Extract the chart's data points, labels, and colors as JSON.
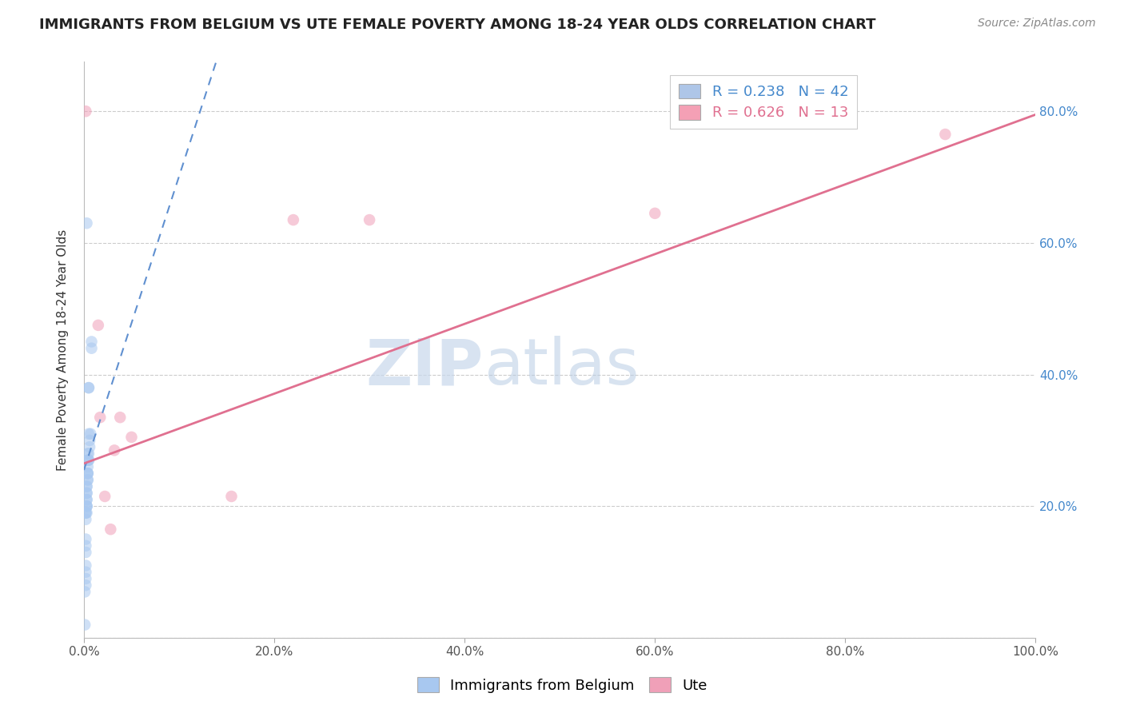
{
  "title": "IMMIGRANTS FROM BELGIUM VS UTE FEMALE POVERTY AMONG 18-24 YEAR OLDS CORRELATION CHART",
  "source": "Source: ZipAtlas.com",
  "ylabel": "Female Poverty Among 18-24 Year Olds",
  "xlim": [
    0.0,
    1.0
  ],
  "ylim": [
    0.0,
    0.875
  ],
  "legend1_r": "0.238",
  "legend1_n": "42",
  "legend2_r": "0.626",
  "legend2_n": "13",
  "legend_color1": "#aec6e8",
  "legend_color2": "#f4a0b5",
  "watermark_zip": "ZIP",
  "watermark_atlas": "atlas",
  "blue_scatter_x": [
    0.003,
    0.008,
    0.008,
    0.005,
    0.005,
    0.007,
    0.005,
    0.006,
    0.006,
    0.005,
    0.004,
    0.005,
    0.004,
    0.005,
    0.004,
    0.004,
    0.004,
    0.004,
    0.004,
    0.004,
    0.003,
    0.003,
    0.003,
    0.003,
    0.003,
    0.003,
    0.003,
    0.003,
    0.003,
    0.003,
    0.002,
    0.002,
    0.002,
    0.002,
    0.002,
    0.002,
    0.002,
    0.002,
    0.002,
    0.002,
    0.001,
    0.001
  ],
  "blue_scatter_y": [
    0.63,
    0.45,
    0.44,
    0.38,
    0.38,
    0.31,
    0.31,
    0.3,
    0.29,
    0.28,
    0.28,
    0.27,
    0.27,
    0.27,
    0.26,
    0.25,
    0.25,
    0.25,
    0.24,
    0.24,
    0.23,
    0.23,
    0.22,
    0.22,
    0.21,
    0.21,
    0.2,
    0.2,
    0.2,
    0.19,
    0.19,
    0.19,
    0.18,
    0.15,
    0.14,
    0.13,
    0.11,
    0.1,
    0.09,
    0.08,
    0.07,
    0.02
  ],
  "pink_scatter_x": [
    0.002,
    0.015,
    0.017,
    0.022,
    0.028,
    0.032,
    0.038,
    0.05,
    0.155,
    0.22,
    0.3,
    0.6,
    0.905
  ],
  "pink_scatter_y": [
    0.8,
    0.475,
    0.335,
    0.215,
    0.165,
    0.285,
    0.335,
    0.305,
    0.215,
    0.635,
    0.635,
    0.645,
    0.765
  ],
  "blue_line_x": [
    0.0,
    0.14
  ],
  "blue_line_y": [
    0.255,
    0.88
  ],
  "pink_line_x": [
    0.0,
    1.0
  ],
  "pink_line_y": [
    0.265,
    0.795
  ],
  "scatter_alpha": 0.55,
  "scatter_size": 110,
  "blue_scatter_color": "#a8c8f0",
  "pink_scatter_color": "#f0a0b8",
  "blue_line_color": "#6090d0",
  "pink_line_color": "#e07090",
  "grid_color": "#cccccc",
  "ytick_color": "#4488cc",
  "xtick_color": "#555555",
  "title_fontsize": 13,
  "source_fontsize": 10,
  "ylabel_fontsize": 11,
  "tick_fontsize": 11,
  "legend_fontsize": 13
}
